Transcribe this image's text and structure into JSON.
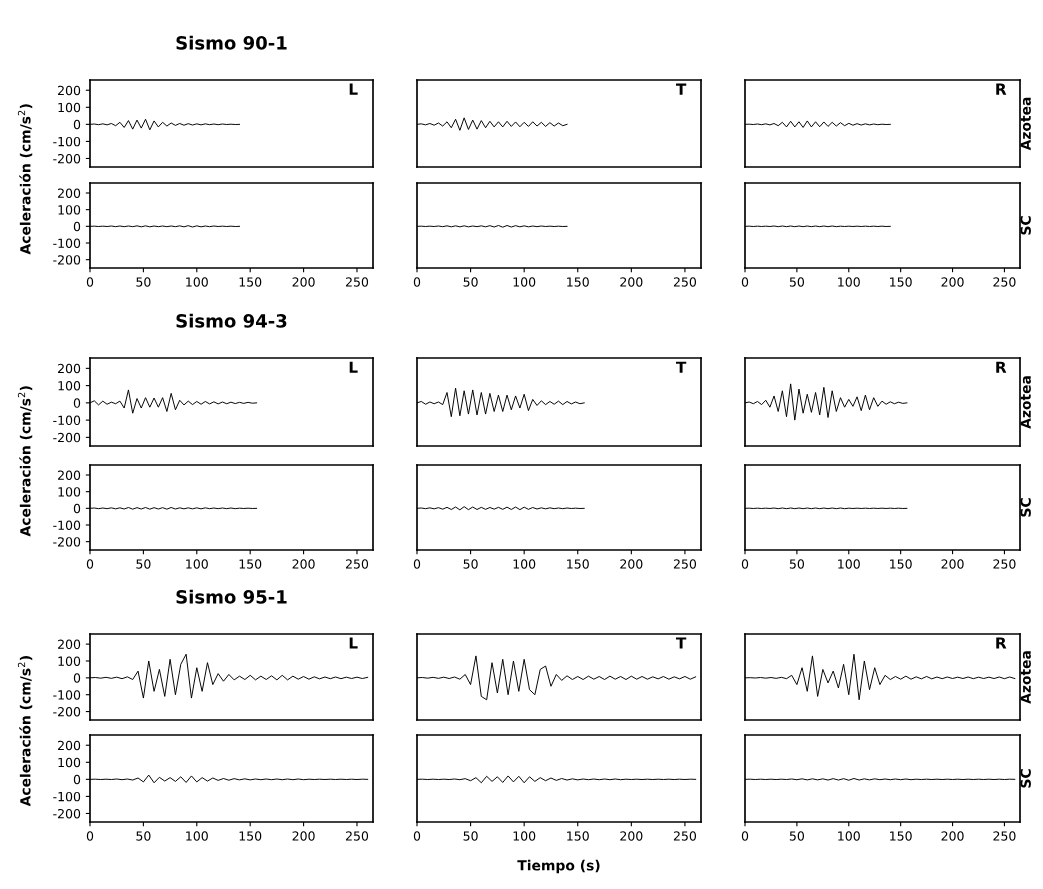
{
  "chart_data": [
    {
      "type": "line",
      "title": "Sismo 90-1",
      "annotations": [
        "L"
      ],
      "tick_labels": "y",
      "xlim": [
        0,
        265
      ],
      "ylim": [
        -250,
        260
      ],
      "xticks": [
        0,
        50,
        100,
        150,
        200,
        250
      ],
      "yticks": [
        -200,
        -100,
        0,
        100,
        200
      ],
      "x": [
        0,
        4,
        8,
        12,
        16,
        20,
        24,
        28,
        32,
        36,
        40,
        44,
        48,
        52,
        56,
        60,
        64,
        68,
        72,
        76,
        80,
        84,
        88,
        92,
        96,
        100,
        104,
        108,
        112,
        116,
        120,
        124,
        128,
        132,
        136,
        140
      ],
      "series": [
        {
          "color": "#000000",
          "values": [
            0,
            2,
            -2,
            3,
            -3,
            5,
            -8,
            12,
            -18,
            22,
            -28,
            25,
            -22,
            30,
            -32,
            20,
            -15,
            12,
            -10,
            8,
            -6,
            5,
            -5,
            4,
            -4,
            3,
            -3,
            3,
            -2,
            2,
            -2,
            2,
            -1,
            1,
            -1,
            0
          ]
        }
      ]
    },
    {
      "type": "line",
      "annotations": [
        "T"
      ],
      "tick_labels": false,
      "xlim": [
        0,
        265
      ],
      "ylim": [
        -250,
        260
      ],
      "xticks": [
        0,
        50,
        100,
        150,
        200,
        250
      ],
      "yticks": [
        -200,
        -100,
        0,
        100,
        200
      ],
      "x": [
        0,
        4,
        8,
        12,
        16,
        20,
        24,
        28,
        32,
        36,
        40,
        44,
        48,
        52,
        56,
        60,
        64,
        68,
        72,
        76,
        80,
        84,
        88,
        92,
        96,
        100,
        104,
        108,
        112,
        116,
        120,
        124,
        128,
        132,
        136,
        140
      ],
      "series": [
        {
          "color": "#000000",
          "values": [
            0,
            3,
            -3,
            5,
            -5,
            8,
            -10,
            15,
            -20,
            30,
            -35,
            38,
            -30,
            25,
            -28,
            22,
            -20,
            18,
            -15,
            15,
            -15,
            18,
            -12,
            14,
            -14,
            12,
            -12,
            15,
            -10,
            12,
            -12,
            10,
            -10,
            8,
            -8,
            0
          ]
        }
      ]
    },
    {
      "type": "line",
      "annotations": [
        "R",
        "Azotea"
      ],
      "tick_labels": false,
      "xlim": [
        0,
        265
      ],
      "ylim": [
        -250,
        260
      ],
      "xticks": [
        0,
        50,
        100,
        150,
        200,
        250
      ],
      "yticks": [
        -200,
        -100,
        0,
        100,
        200
      ],
      "x": [
        0,
        4,
        8,
        12,
        16,
        20,
        24,
        28,
        32,
        36,
        40,
        44,
        48,
        52,
        56,
        60,
        64,
        68,
        72,
        76,
        80,
        84,
        88,
        92,
        96,
        100,
        104,
        108,
        112,
        116,
        120,
        124,
        128,
        132,
        136,
        140
      ],
      "series": [
        {
          "color": "#000000",
          "values": [
            0,
            1,
            -1,
            2,
            -2,
            3,
            -3,
            5,
            -8,
            12,
            -15,
            18,
            -15,
            15,
            -18,
            20,
            -15,
            15,
            -14,
            14,
            -12,
            12,
            -10,
            10,
            -8,
            6,
            -5,
            4,
            -4,
            3,
            -3,
            2,
            -2,
            1,
            -1,
            0
          ]
        }
      ]
    },
    {
      "type": "line",
      "ylabel": "Aceleración (cm/s$^{2}$)",
      "xlim": [
        0,
        265
      ],
      "ylim": [
        -250,
        260
      ],
      "xticks": [
        0,
        50,
        100,
        150,
        200,
        250
      ],
      "yticks": [
        -200,
        -100,
        0,
        100,
        200
      ],
      "x": [
        0,
        4,
        8,
        12,
        16,
        20,
        24,
        28,
        32,
        36,
        40,
        44,
        48,
        52,
        56,
        60,
        64,
        68,
        72,
        76,
        80,
        84,
        88,
        92,
        96,
        100,
        104,
        108,
        112,
        116,
        120,
        124,
        128,
        132,
        136,
        140
      ],
      "series": [
        {
          "color": "#000000",
          "values": [
            0,
            1,
            -1,
            1,
            -1,
            2,
            -2,
            2,
            -2,
            2,
            -2,
            3,
            -3,
            3,
            -3,
            2,
            -2,
            2,
            -2,
            2,
            -2,
            3,
            -3,
            4,
            -4,
            3,
            -3,
            2,
            -2,
            2,
            -1,
            1,
            -1,
            1,
            -1,
            0
          ]
        }
      ]
    },
    {
      "type": "line",
      "tick_labels": "x",
      "xlim": [
        0,
        265
      ],
      "ylim": [
        -250,
        260
      ],
      "xticks": [
        0,
        50,
        100,
        150,
        200,
        250
      ],
      "yticks": [
        -200,
        -100,
        0,
        100,
        200
      ],
      "x": [
        0,
        4,
        8,
        12,
        16,
        20,
        24,
        28,
        32,
        36,
        40,
        44,
        48,
        52,
        56,
        60,
        64,
        68,
        72,
        76,
        80,
        84,
        88,
        92,
        96,
        100,
        104,
        108,
        112,
        116,
        120,
        124,
        128,
        132,
        136,
        140
      ],
      "series": [
        {
          "color": "#000000",
          "values": [
            0,
            1,
            -1,
            1,
            -1,
            2,
            -2,
            3,
            -3,
            3,
            -3,
            3,
            -3,
            2,
            -2,
            3,
            -3,
            4,
            -4,
            5,
            -5,
            5,
            -4,
            4,
            -3,
            3,
            -3,
            2,
            -2,
            2,
            -1,
            1,
            -1,
            1,
            -1,
            0
          ]
        }
      ]
    },
    {
      "type": "line",
      "annotations": [
        "SC"
      ],
      "tick_labels": "x",
      "xlim": [
        0,
        265
      ],
      "ylim": [
        -250,
        260
      ],
      "xticks": [
        0,
        50,
        100,
        150,
        200,
        250
      ],
      "yticks": [
        -200,
        -100,
        0,
        100,
        200
      ],
      "x": [
        0,
        4,
        8,
        12,
        16,
        20,
        24,
        28,
        32,
        36,
        40,
        44,
        48,
        52,
        56,
        60,
        64,
        68,
        72,
        76,
        80,
        84,
        88,
        92,
        96,
        100,
        104,
        108,
        112,
        116,
        120,
        124,
        128,
        132,
        136,
        140
      ],
      "series": [
        {
          "color": "#000000",
          "values": [
            0,
            1,
            -1,
            1,
            -1,
            1,
            -1,
            2,
            -2,
            2,
            -2,
            2,
            -2,
            2,
            -2,
            2,
            -2,
            2,
            -2,
            2,
            -2,
            2,
            -2,
            1,
            -1,
            1,
            -1,
            1,
            -1,
            1,
            -1,
            1,
            -1,
            1,
            -1,
            0
          ]
        }
      ]
    },
    {
      "type": "line",
      "title": "Sismo 94-3",
      "annotations": [
        "L"
      ],
      "tick_labels": "y",
      "xlim": [
        0,
        265
      ],
      "ylim": [
        -250,
        260
      ],
      "xticks": [
        0,
        50,
        100,
        150,
        200,
        250
      ],
      "yticks": [
        -200,
        -100,
        0,
        100,
        200
      ],
      "x": [
        0,
        4,
        8,
        12,
        16,
        20,
        24,
        28,
        32,
        36,
        40,
        44,
        48,
        52,
        56,
        60,
        64,
        68,
        72,
        76,
        80,
        84,
        88,
        92,
        96,
        100,
        104,
        108,
        112,
        116,
        120,
        124,
        128,
        132,
        136,
        140,
        144,
        148,
        152,
        156
      ],
      "series": [
        {
          "color": "#000000",
          "values": [
            0,
            12,
            -12,
            10,
            -8,
            4,
            -5,
            10,
            -30,
            75,
            -60,
            25,
            -30,
            30,
            -25,
            28,
            -25,
            30,
            -50,
            55,
            -40,
            15,
            -12,
            10,
            -10,
            8,
            -8,
            8,
            -6,
            6,
            -6,
            5,
            -5,
            4,
            -4,
            3,
            -3,
            3,
            -2,
            0
          ]
        }
      ]
    },
    {
      "type": "line",
      "annotations": [
        "T"
      ],
      "tick_labels": false,
      "xlim": [
        0,
        265
      ],
      "ylim": [
        -250,
        260
      ],
      "xticks": [
        0,
        50,
        100,
        150,
        200,
        250
      ],
      "yticks": [
        -200,
        -100,
        0,
        100,
        200
      ],
      "x": [
        0,
        4,
        8,
        12,
        16,
        20,
        24,
        28,
        32,
        36,
        40,
        44,
        48,
        52,
        56,
        60,
        64,
        68,
        72,
        76,
        80,
        84,
        88,
        92,
        96,
        100,
        104,
        108,
        112,
        116,
        120,
        124,
        128,
        132,
        136,
        140,
        144,
        148,
        152,
        156
      ],
      "series": [
        {
          "color": "#000000",
          "values": [
            0,
            8,
            -8,
            5,
            -5,
            5,
            -10,
            60,
            -80,
            85,
            -75,
            70,
            -65,
            75,
            -70,
            60,
            -65,
            55,
            -50,
            45,
            -50,
            45,
            -40,
            40,
            -30,
            50,
            -45,
            20,
            -15,
            12,
            -10,
            8,
            -8,
            10,
            -10,
            8,
            -6,
            5,
            -5,
            0
          ]
        }
      ]
    },
    {
      "type": "line",
      "annotations": [
        "R",
        "Azotea"
      ],
      "tick_labels": false,
      "xlim": [
        0,
        265
      ],
      "ylim": [
        -250,
        260
      ],
      "xticks": [
        0,
        50,
        100,
        150,
        200,
        250
      ],
      "yticks": [
        -200,
        -100,
        0,
        100,
        200
      ],
      "x": [
        0,
        4,
        8,
        12,
        16,
        20,
        24,
        28,
        32,
        36,
        40,
        44,
        48,
        52,
        56,
        60,
        64,
        68,
        72,
        76,
        80,
        84,
        88,
        92,
        96,
        100,
        104,
        108,
        112,
        116,
        120,
        124,
        128,
        132,
        136,
        140,
        144,
        148,
        152,
        156
      ],
      "series": [
        {
          "color": "#000000",
          "values": [
            0,
            5,
            -5,
            8,
            -10,
            15,
            -25,
            40,
            -50,
            70,
            -80,
            110,
            -100,
            80,
            -60,
            50,
            -55,
            60,
            -70,
            90,
            -85,
            70,
            -50,
            30,
            -25,
            20,
            -20,
            35,
            -45,
            45,
            -40,
            30,
            -20,
            10,
            -8,
            6,
            -5,
            4,
            -3,
            0
          ]
        }
      ]
    },
    {
      "type": "line",
      "ylabel": "Aceleración (cm/s$^{2}$)",
      "xlim": [
        0,
        265
      ],
      "ylim": [
        -250,
        260
      ],
      "xticks": [
        0,
        50,
        100,
        150,
        200,
        250
      ],
      "yticks": [
        -200,
        -100,
        0,
        100,
        200
      ],
      "x": [
        0,
        4,
        8,
        12,
        16,
        20,
        24,
        28,
        32,
        36,
        40,
        44,
        48,
        52,
        56,
        60,
        64,
        68,
        72,
        76,
        80,
        84,
        88,
        92,
        96,
        100,
        104,
        108,
        112,
        116,
        120,
        124,
        128,
        132,
        136,
        140,
        144,
        148,
        152,
        156
      ],
      "series": [
        {
          "color": "#000000",
          "values": [
            0,
            2,
            -2,
            2,
            -2,
            3,
            -3,
            3,
            -4,
            5,
            -5,
            4,
            -4,
            5,
            -5,
            4,
            -4,
            4,
            -5,
            5,
            -4,
            3,
            -3,
            3,
            -3,
            3,
            -3,
            3,
            -2,
            2,
            -2,
            2,
            -2,
            2,
            -2,
            1,
            -1,
            1,
            -1,
            0
          ]
        }
      ]
    },
    {
      "type": "line",
      "tick_labels": "x",
      "xlim": [
        0,
        265
      ],
      "ylim": [
        -250,
        260
      ],
      "xticks": [
        0,
        50,
        100,
        150,
        200,
        250
      ],
      "yticks": [
        -200,
        -100,
        0,
        100,
        200
      ],
      "x": [
        0,
        4,
        8,
        12,
        16,
        20,
        24,
        28,
        32,
        36,
        40,
        44,
        48,
        52,
        56,
        60,
        64,
        68,
        72,
        76,
        80,
        84,
        88,
        92,
        96,
        100,
        104,
        108,
        112,
        116,
        120,
        124,
        128,
        132,
        136,
        140,
        144,
        148,
        152,
        156
      ],
      "series": [
        {
          "color": "#000000",
          "values": [
            0,
            2,
            -2,
            3,
            -3,
            4,
            -5,
            6,
            -7,
            8,
            -9,
            10,
            -8,
            8,
            -7,
            6,
            -6,
            5,
            -5,
            6,
            -6,
            7,
            -7,
            8,
            -8,
            7,
            -6,
            5,
            -4,
            3,
            -3,
            3,
            -2,
            2,
            -2,
            2,
            -1,
            1,
            -1,
            0
          ]
        }
      ]
    },
    {
      "type": "line",
      "annotations": [
        "SC"
      ],
      "tick_labels": "x",
      "xlim": [
        0,
        265
      ],
      "ylim": [
        -250,
        260
      ],
      "xticks": [
        0,
        50,
        100,
        150,
        200,
        250
      ],
      "yticks": [
        -200,
        -100,
        0,
        100,
        200
      ],
      "x": [
        0,
        4,
        8,
        12,
        16,
        20,
        24,
        28,
        32,
        36,
        40,
        44,
        48,
        52,
        56,
        60,
        64,
        68,
        72,
        76,
        80,
        84,
        88,
        92,
        96,
        100,
        104,
        108,
        112,
        116,
        120,
        124,
        128,
        132,
        136,
        140,
        144,
        148,
        152,
        156
      ],
      "series": [
        {
          "color": "#000000",
          "values": [
            0,
            1,
            -1,
            1,
            -1,
            1,
            -1,
            2,
            -2,
            2,
            -2,
            2,
            -2,
            2,
            -2,
            2,
            -2,
            2,
            -2,
            2,
            -2,
            2,
            -2,
            2,
            -2,
            1,
            -1,
            1,
            -1,
            1,
            -1,
            1,
            -1,
            1,
            -1,
            1,
            -1,
            1,
            -1,
            0
          ]
        }
      ]
    },
    {
      "type": "line",
      "title": "Sismo 95-1",
      "annotations": [
        "L"
      ],
      "tick_labels": "y",
      "xlim": [
        0,
        265
      ],
      "ylim": [
        -250,
        260
      ],
      "xticks": [
        0,
        50,
        100,
        150,
        200,
        250
      ],
      "yticks": [
        -200,
        -100,
        0,
        100,
        200
      ],
      "x": [
        0,
        5,
        10,
        15,
        20,
        25,
        30,
        35,
        40,
        45,
        50,
        55,
        60,
        65,
        70,
        75,
        80,
        85,
        90,
        95,
        100,
        105,
        110,
        115,
        120,
        125,
        130,
        135,
        140,
        145,
        150,
        155,
        160,
        165,
        170,
        175,
        180,
        185,
        190,
        195,
        200,
        205,
        210,
        215,
        220,
        225,
        230,
        235,
        240,
        245,
        250,
        255,
        260
      ],
      "series": [
        {
          "color": "#000000",
          "values": [
            0,
            2,
            -2,
            3,
            -3,
            4,
            -5,
            6,
            -10,
            40,
            -120,
            100,
            -80,
            50,
            -110,
            110,
            -100,
            80,
            140,
            -120,
            60,
            -80,
            90,
            -40,
            25,
            -20,
            20,
            -12,
            10,
            -10,
            15,
            -12,
            10,
            -10,
            12,
            -12,
            15,
            -12,
            10,
            -8,
            8,
            -8,
            6,
            -6,
            5,
            -5,
            5,
            -5,
            4,
            -4,
            4,
            -4,
            3
          ]
        }
      ]
    },
    {
      "type": "line",
      "annotations": [
        "T"
      ],
      "tick_labels": false,
      "xlim": [
        0,
        265
      ],
      "ylim": [
        -250,
        260
      ],
      "xticks": [
        0,
        50,
        100,
        150,
        200,
        250
      ],
      "yticks": [
        -200,
        -100,
        0,
        100,
        200
      ],
      "x": [
        0,
        5,
        10,
        15,
        20,
        25,
        30,
        35,
        40,
        45,
        50,
        55,
        60,
        65,
        70,
        75,
        80,
        85,
        90,
        95,
        100,
        105,
        110,
        115,
        120,
        125,
        130,
        135,
        140,
        145,
        150,
        155,
        160,
        165,
        170,
        175,
        180,
        185,
        190,
        195,
        200,
        205,
        210,
        215,
        220,
        225,
        230,
        235,
        240,
        245,
        250,
        255,
        260
      ],
      "series": [
        {
          "color": "#000000",
          "values": [
            0,
            2,
            -2,
            3,
            -3,
            4,
            -4,
            5,
            -8,
            20,
            -40,
            130,
            -110,
            -130,
            90,
            -90,
            110,
            -100,
            100,
            -80,
            110,
            -70,
            -100,
            50,
            70,
            -50,
            20,
            -15,
            12,
            -10,
            8,
            -10,
            10,
            -8,
            8,
            -10,
            10,
            -8,
            8,
            -10,
            10,
            -8,
            8,
            -8,
            6,
            -6,
            8,
            -8,
            6,
            -6,
            8,
            -8,
            6
          ]
        }
      ]
    },
    {
      "type": "line",
      "annotations": [
        "R",
        "Azotea"
      ],
      "tick_labels": false,
      "xlim": [
        0,
        265
      ],
      "ylim": [
        -250,
        260
      ],
      "xticks": [
        0,
        50,
        100,
        150,
        200,
        250
      ],
      "yticks": [
        -200,
        -100,
        0,
        100,
        200
      ],
      "x": [
        0,
        5,
        10,
        15,
        20,
        25,
        30,
        35,
        40,
        45,
        50,
        55,
        60,
        65,
        70,
        75,
        80,
        85,
        90,
        95,
        100,
        105,
        110,
        115,
        120,
        125,
        130,
        135,
        140,
        145,
        150,
        155,
        160,
        165,
        170,
        175,
        180,
        185,
        190,
        195,
        200,
        205,
        210,
        215,
        220,
        225,
        230,
        235,
        240,
        245,
        250,
        255,
        260
      ],
      "series": [
        {
          "color": "#000000",
          "values": [
            0,
            1,
            -1,
            2,
            -2,
            2,
            -3,
            3,
            -5,
            15,
            -40,
            60,
            -80,
            130,
            -110,
            50,
            -30,
            40,
            -60,
            80,
            -100,
            140,
            -130,
            100,
            -70,
            60,
            -40,
            15,
            -10,
            8,
            -8,
            10,
            -8,
            6,
            -6,
            8,
            -6,
            5,
            -5,
            5,
            -4,
            4,
            -4,
            5,
            -5,
            4,
            -4,
            4,
            -4,
            5,
            -5,
            5,
            -4
          ]
        }
      ]
    },
    {
      "type": "line",
      "ylabel": "Aceleración (cm/s$^{2}$)",
      "xlim": [
        0,
        265
      ],
      "ylim": [
        -250,
        260
      ],
      "xticks": [
        0,
        50,
        100,
        150,
        200,
        250
      ],
      "yticks": [
        -200,
        -100,
        0,
        100,
        200
      ],
      "x": [
        0,
        5,
        10,
        15,
        20,
        25,
        30,
        35,
        40,
        45,
        50,
        55,
        60,
        65,
        70,
        75,
        80,
        85,
        90,
        95,
        100,
        105,
        110,
        115,
        120,
        125,
        130,
        135,
        140,
        145,
        150,
        155,
        160,
        165,
        170,
        175,
        180,
        185,
        190,
        195,
        200,
        205,
        210,
        215,
        220,
        225,
        230,
        235,
        240,
        245,
        250,
        255,
        260
      ],
      "series": [
        {
          "color": "#000000",
          "values": [
            0,
            1,
            -1,
            1,
            -1,
            2,
            -2,
            2,
            -4,
            8,
            -15,
            25,
            -20,
            12,
            -10,
            10,
            -12,
            15,
            -18,
            20,
            -15,
            10,
            -10,
            8,
            -6,
            5,
            -5,
            4,
            -3,
            3,
            -3,
            2,
            -2,
            2,
            -2,
            2,
            -2,
            2,
            -2,
            2,
            -2,
            1,
            -1,
            1,
            -1,
            1,
            -1,
            1,
            -1,
            1,
            -1,
            1,
            0
          ]
        }
      ]
    },
    {
      "type": "line",
      "xlabel": "Tiempo (s)",
      "tick_labels": "x",
      "xlim": [
        0,
        265
      ],
      "ylim": [
        -250,
        260
      ],
      "xticks": [
        0,
        50,
        100,
        150,
        200,
        250
      ],
      "yticks": [
        -200,
        -100,
        0,
        100,
        200
      ],
      "x": [
        0,
        5,
        10,
        15,
        20,
        25,
        30,
        35,
        40,
        45,
        50,
        55,
        60,
        65,
        70,
        75,
        80,
        85,
        90,
        95,
        100,
        105,
        110,
        115,
        120,
        125,
        130,
        135,
        140,
        145,
        150,
        155,
        160,
        165,
        170,
        175,
        180,
        185,
        190,
        195,
        200,
        205,
        210,
        215,
        220,
        225,
        230,
        235,
        240,
        245,
        250,
        255,
        260
      ],
      "series": [
        {
          "color": "#000000",
          "values": [
            0,
            1,
            -1,
            1,
            -1,
            1,
            -1,
            2,
            -2,
            4,
            -8,
            10,
            -20,
            18,
            -12,
            15,
            -18,
            20,
            -15,
            18,
            -20,
            15,
            -12,
            10,
            -8,
            8,
            -6,
            5,
            -4,
            3,
            -3,
            2,
            -2,
            2,
            -2,
            2,
            -2,
            2,
            -2,
            1,
            -1,
            1,
            -1,
            1,
            -1,
            1,
            -1,
            1,
            -1,
            1,
            -1,
            1,
            0
          ]
        }
      ]
    },
    {
      "type": "line",
      "annotations": [
        "SC"
      ],
      "tick_labels": "x",
      "xlim": [
        0,
        265
      ],
      "ylim": [
        -250,
        260
      ],
      "xticks": [
        0,
        50,
        100,
        150,
        200,
        250
      ],
      "yticks": [
        -200,
        -100,
        0,
        100,
        200
      ],
      "x": [
        0,
        5,
        10,
        15,
        20,
        25,
        30,
        35,
        40,
        45,
        50,
        55,
        60,
        65,
        70,
        75,
        80,
        85,
        90,
        95,
        100,
        105,
        110,
        115,
        120,
        125,
        130,
        135,
        140,
        145,
        150,
        155,
        160,
        165,
        170,
        175,
        180,
        185,
        190,
        195,
        200,
        205,
        210,
        215,
        220,
        225,
        230,
        235,
        240,
        245,
        250,
        255,
        260
      ],
      "series": [
        {
          "color": "#000000",
          "values": [
            0,
            1,
            -1,
            1,
            -1,
            1,
            -1,
            1,
            -1,
            2,
            -2,
            3,
            -3,
            3,
            -3,
            3,
            -4,
            4,
            -4,
            4,
            -5,
            5,
            -4,
            3,
            -3,
            3,
            -2,
            2,
            -2,
            2,
            -2,
            2,
            -2,
            1,
            -1,
            1,
            -1,
            1,
            -1,
            1,
            -1,
            1,
            -1,
            1,
            -1,
            1,
            -1,
            1,
            -1,
            1,
            -1,
            1,
            0
          ]
        }
      ]
    }
  ]
}
